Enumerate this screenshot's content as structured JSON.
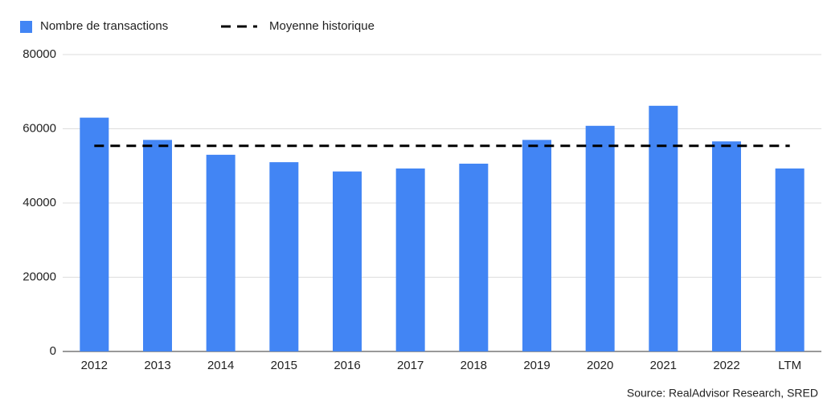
{
  "chart_data": {
    "type": "bar",
    "categories": [
      "2012",
      "2013",
      "2014",
      "2015",
      "2016",
      "2017",
      "2018",
      "2019",
      "2020",
      "2021",
      "2022",
      "LTM"
    ],
    "series": [
      {
        "name": "Nombre de transactions",
        "type": "bar",
        "color": "#4285f4",
        "values": [
          63000,
          57000,
          53000,
          51000,
          48500,
          49300,
          50600,
          57000,
          60800,
          66200,
          56600,
          49300
        ]
      },
      {
        "name": "Moyenne historique",
        "type": "line",
        "color": "#000000",
        "dashed": true,
        "values": [
          55400,
          55400,
          55400,
          55400,
          55400,
          55400,
          55400,
          55400,
          55400,
          55400,
          55400,
          55400
        ]
      }
    ],
    "ylim": [
      0,
      80000
    ],
    "yticks": [
      0,
      20000,
      40000,
      60000,
      80000
    ],
    "grid": true,
    "legend": "top",
    "source": "Source: RealAdvisor Research, SRED"
  }
}
